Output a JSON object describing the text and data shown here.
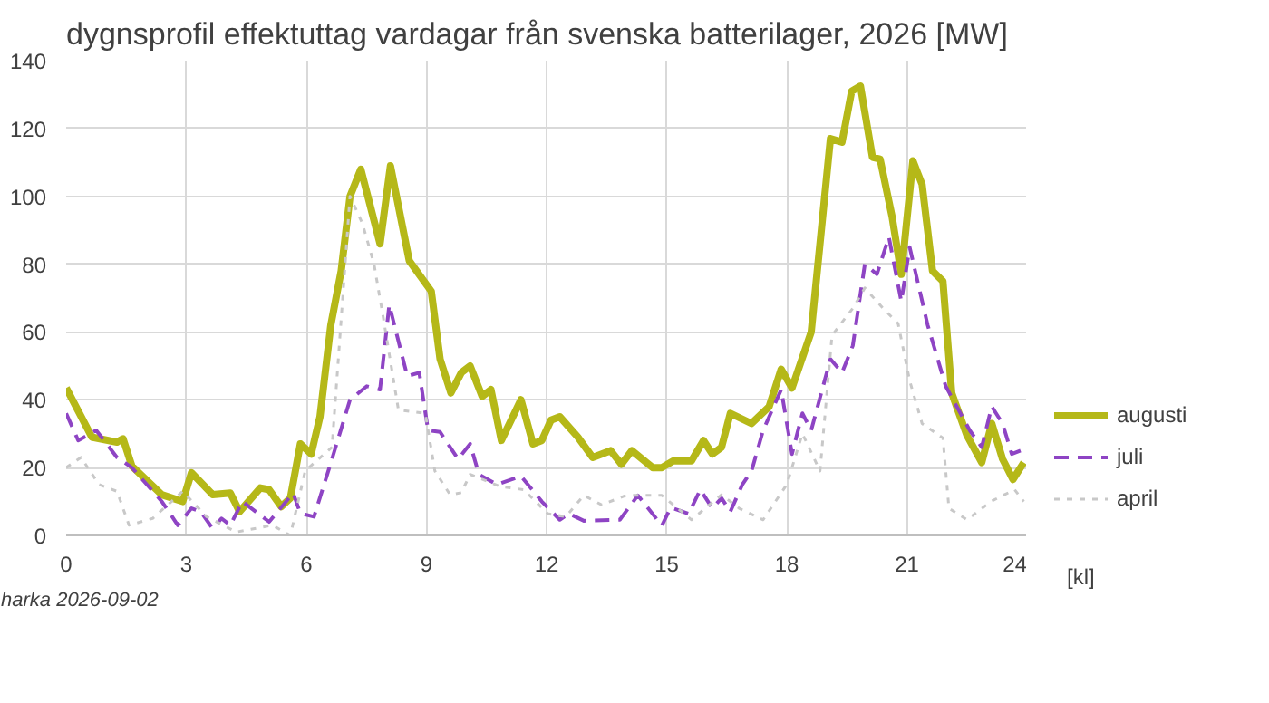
{
  "chart_data": {
    "type": "line",
    "title": "dygnsprofil effektuttag vardagar från svenska batterilager, 2026 [MW]",
    "xlabel": "[kl]",
    "xlim": [
      0,
      24
    ],
    "xticks": [
      0,
      3,
      6,
      9,
      12,
      15,
      18,
      21,
      24
    ],
    "ylim": [
      0,
      140
    ],
    "yticks": [
      0,
      20,
      40,
      60,
      80,
      100,
      120,
      140
    ],
    "grid": true,
    "legend": "right",
    "annotations": [
      "harka 2026-09-02"
    ],
    "series": [
      {
        "name": "augusti",
        "color": "#b5b818",
        "line_style": "solid",
        "x": [
          0,
          0.64,
          1.27,
          1.42,
          1.64,
          2.39,
          2.91,
          3.13,
          3.66,
          4.1,
          4.33,
          4.85,
          5.07,
          5.37,
          5.6,
          5.85,
          6.12,
          6.34,
          6.61,
          6.87,
          7.09,
          7.36,
          7.84,
          8.1,
          8.57,
          9.12,
          9.34,
          9.61,
          9.87,
          10.09,
          10.39,
          10.61,
          10.87,
          11.36,
          11.66,
          11.88,
          12.11,
          12.33,
          12.78,
          13.15,
          13.6,
          13.87,
          14.13,
          14.65,
          14.88,
          15.17,
          15.62,
          15.92,
          16.14,
          16.37,
          16.59,
          17.12,
          17.56,
          17.86,
          18.13,
          18.61,
          19.09,
          19.38,
          19.62,
          19.84,
          20.14,
          20.33,
          20.63,
          20.86,
          21.15,
          21.38,
          21.64,
          21.9,
          22.12,
          22.5,
          22.87,
          23.12,
          23.39,
          23.65,
          23.92
        ],
        "values": [
          43.5,
          29,
          27.5,
          28.5,
          20.5,
          12,
          10,
          18.5,
          12,
          12.5,
          7,
          14,
          13.5,
          8.5,
          11,
          27,
          24,
          35,
          62,
          78,
          100,
          108,
          86,
          109,
          81,
          72,
          52,
          42,
          48,
          50,
          41,
          43,
          28,
          40,
          27,
          28,
          34,
          35,
          29,
          23,
          25,
          21,
          25,
          20,
          20,
          22,
          22,
          28,
          24,
          26,
          36,
          33,
          38,
          49,
          43.5,
          60,
          117,
          116,
          131,
          132.5,
          111.5,
          111,
          94,
          77,
          110.5,
          103.5,
          78,
          75,
          42,
          29.5,
          21.5,
          33,
          22.5,
          16.5,
          21.5
        ]
      },
      {
        "name": "juli",
        "color": "#8e44c4",
        "line_style": "dashed",
        "x": [
          0,
          0.3,
          0.75,
          1.27,
          1.64,
          2.39,
          2.79,
          3.13,
          3.36,
          3.66,
          3.88,
          4.1,
          4.4,
          5.07,
          5.67,
          5.85,
          6.19,
          6.64,
          7.09,
          7.51,
          7.84,
          8.07,
          8.52,
          8.82,
          9.04,
          9.34,
          9.79,
          10.09,
          10.31,
          10.76,
          11.36,
          11.88,
          12.33,
          12.56,
          12.93,
          13.83,
          14.28,
          14.88,
          15.1,
          15.55,
          15.84,
          16.14,
          16.37,
          16.59,
          16.89,
          17.12,
          17.41,
          17.86,
          18.13,
          18.39,
          18.61,
          19.09,
          19.38,
          19.65,
          19.95,
          20.25,
          20.55,
          20.86,
          21.07,
          21.52,
          21.97,
          22.57,
          22.87,
          23.12,
          23.39,
          23.62,
          23.84
        ],
        "values": [
          36,
          28,
          31,
          23,
          20,
          10,
          3,
          8,
          7,
          2,
          5,
          3,
          10,
          4,
          12.5,
          6.5,
          5.5,
          22.5,
          40,
          44,
          43,
          68,
          47,
          48,
          31,
          30.5,
          22.5,
          27,
          18,
          15,
          17.5,
          10,
          4.6,
          6.4,
          4.3,
          4.6,
          11.8,
          2.9,
          8.2,
          6.4,
          13.5,
          8,
          11,
          7,
          15,
          19,
          31,
          43,
          24,
          36,
          31,
          52,
          48,
          56,
          80,
          77,
          88,
          69,
          85,
          62,
          44,
          31,
          26,
          38,
          33,
          24,
          25
        ]
      },
      {
        "name": "april",
        "color": "#c8c8c8",
        "line_style": "dotted",
        "x": [
          0,
          0.37,
          0.82,
          1.27,
          1.57,
          2.16,
          2.91,
          3.51,
          4.25,
          5.15,
          5.6,
          5.97,
          6.64,
          7.09,
          7.4,
          7.69,
          7.91,
          8.3,
          8.97,
          9.21,
          9.59,
          9.87,
          10.09,
          10.84,
          11.43,
          12.03,
          12.48,
          12.93,
          13.38,
          13.98,
          14.88,
          15.62,
          16.37,
          16.81,
          17.41,
          18.0,
          18.39,
          18.83,
          19.13,
          19.65,
          19.95,
          20.4,
          20.78,
          21.07,
          21.38,
          21.9,
          22.05,
          22.5,
          23.1,
          23.69,
          23.92
        ],
        "values": [
          20,
          23,
          15,
          13,
          3,
          5,
          13,
          5.5,
          1,
          3,
          0,
          19,
          26,
          100,
          92,
          80,
          65,
          37,
          36,
          19,
          12,
          12.6,
          18,
          14.4,
          13.5,
          6.4,
          5.5,
          11.8,
          9,
          11.8,
          11.8,
          4.6,
          12,
          8,
          4.6,
          15,
          30,
          19,
          59,
          67,
          73,
          67,
          62.5,
          45.6,
          33,
          28.7,
          8,
          4.6,
          10,
          13.5,
          10
        ]
      }
    ]
  }
}
